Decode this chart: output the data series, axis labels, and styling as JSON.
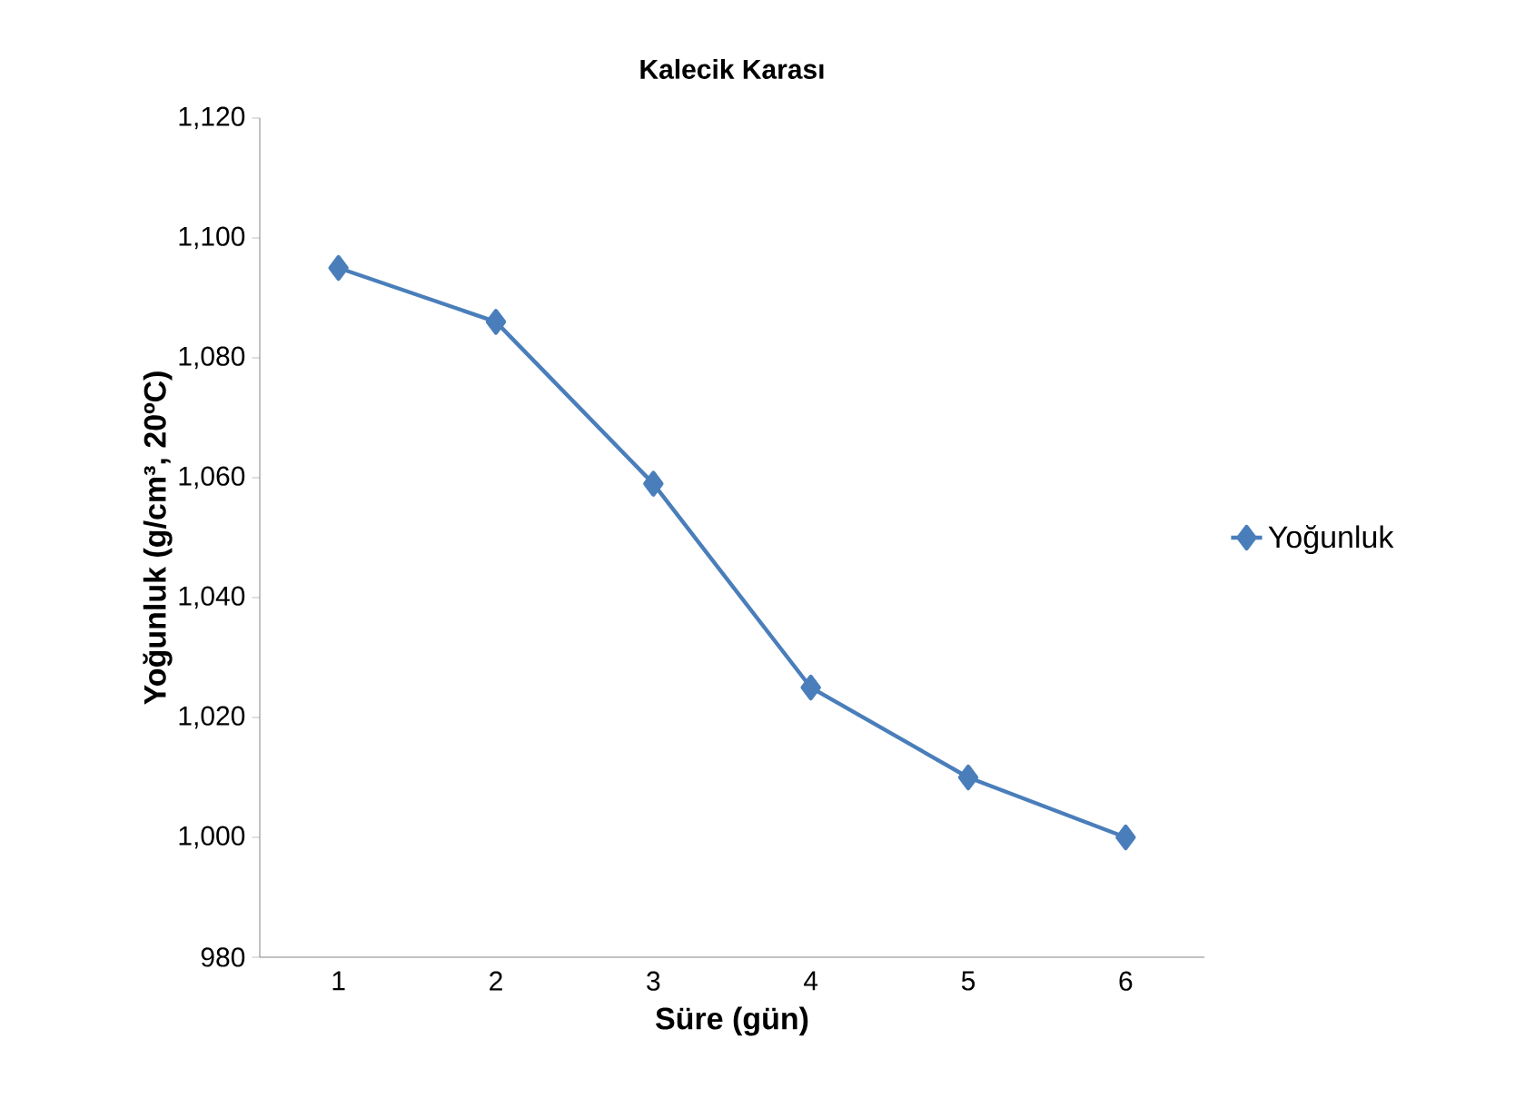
{
  "chart_data": {
    "type": "line",
    "title": "Kalecik Karası",
    "xlabel": "Süre (gün)",
    "ylabel": "Yoğunluk (g/cm³, 20ºC)",
    "categories": [
      "1",
      "2",
      "3",
      "4",
      "5",
      "6"
    ],
    "series": [
      {
        "name": "Yoğunluk",
        "color": "#4a7ebb",
        "values": [
          1095,
          1086,
          1059,
          1025,
          1010,
          1000
        ]
      }
    ],
    "ylim": [
      980,
      1120
    ],
    "yticks": [
      980,
      {
        "value": 1000,
        "label": "1,000"
      },
      {
        "value": 1020,
        "label": "1,020"
      },
      {
        "value": 1040,
        "label": "1,040"
      },
      {
        "value": 1060,
        "label": "1,060"
      },
      {
        "value": 1080,
        "label": "1,080"
      },
      {
        "value": 1100,
        "label": "1,100"
      },
      {
        "value": 1120,
        "label": "1,120"
      }
    ],
    "grid": false,
    "legend": "right",
    "marker": "diamond",
    "line_style": "solid"
  }
}
